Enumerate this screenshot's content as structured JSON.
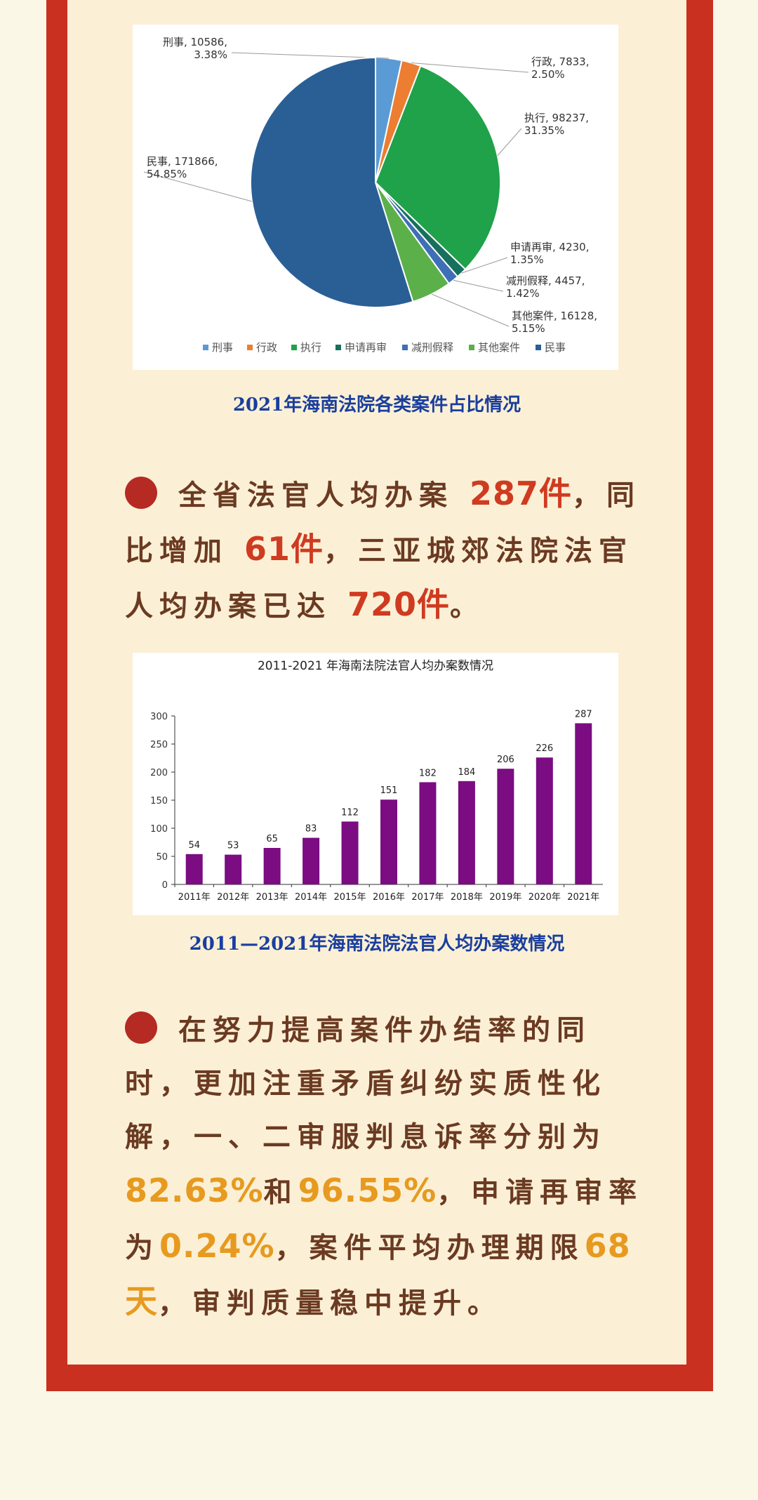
{
  "colors": {
    "frame": "#c9301f",
    "inner_bg": "#fbf0d6",
    "page_bg": "#fbf7e6",
    "caption": "#1a3e9e",
    "body_text": "#6b3a22",
    "highlight_orange": "#e79a1f",
    "bullet": "#b62a24",
    "bar": "#7b0c82"
  },
  "pie_caption": "2021年海南法院各类案件占比情况",
  "bar_caption": "2011—2021年海南法院法官人均办案数情况",
  "para1": {
    "t1": "全省法官人均办案",
    "v1": "287件",
    "t2": "，同比增加",
    "v2": "61件",
    "t3": "，三亚城郊法院法官人均办案已达",
    "v3": "720件",
    "t4": "。"
  },
  "para2": {
    "t1": "在努力提高案件办结率的同时，更加注重矛盾纠纷实质性化解，一、二审服判息诉率分别为",
    "v1": "82.63%",
    "t2": "和",
    "v2": "96.55%",
    "t3": "，申请再审率为",
    "v3": "0.24%",
    "t4": "，案件平均办理期限",
    "v4": "68天",
    "t5": "，审判质量稳中提升。"
  },
  "chart_data": [
    {
      "type": "pie",
      "title": "",
      "slices": [
        {
          "name": "刑事",
          "value": 10586,
          "percent": "3.38%",
          "color": "#5b9bd5",
          "label": "刑事, 10586, 3.38%"
        },
        {
          "name": "行政",
          "value": 7833,
          "percent": "2.50%",
          "color": "#ed7d31",
          "label": "行政, 7833, 2.50%"
        },
        {
          "name": "执行",
          "value": 98237,
          "percent": "31.35%",
          "color": "#1fa24a",
          "label": "执行, 98237, 31.35%"
        },
        {
          "name": "申请再审",
          "value": 4230,
          "percent": "1.35%",
          "color": "#17705e",
          "label": "申请再审, 4230, 1.35%"
        },
        {
          "name": "减刑假释",
          "value": 4457,
          "percent": "1.42%",
          "color": "#3f6fb5",
          "label": "减刑假释, 4457, 1.42%"
        },
        {
          "name": "其他案件",
          "value": 16128,
          "percent": "5.15%",
          "color": "#5bb04a",
          "label": "其他案件, 16128, 5.15%"
        },
        {
          "name": "民事",
          "value": 171866,
          "percent": "54.85%",
          "color": "#2a5f96",
          "label": "民事, 171866, 54.85%"
        }
      ],
      "legend": [
        "刑事",
        "行政",
        "执行",
        "申请再审",
        "减刑假释",
        "其他案件",
        "民事"
      ],
      "legend_position": "bottom"
    },
    {
      "type": "bar",
      "title": "2011-2021 年海南法院法官人均办案数情况",
      "categories": [
        "2011年",
        "2012年",
        "2013年",
        "2014年",
        "2015年",
        "2016年",
        "2017年",
        "2018年",
        "2019年",
        "2020年",
        "2021年"
      ],
      "values": [
        54,
        53,
        65,
        83,
        112,
        151,
        182,
        184,
        206,
        226,
        287
      ],
      "yticks": [
        0,
        50,
        100,
        150,
        200,
        250,
        300
      ],
      "ylim": [
        0,
        300
      ],
      "grid": false
    }
  ]
}
